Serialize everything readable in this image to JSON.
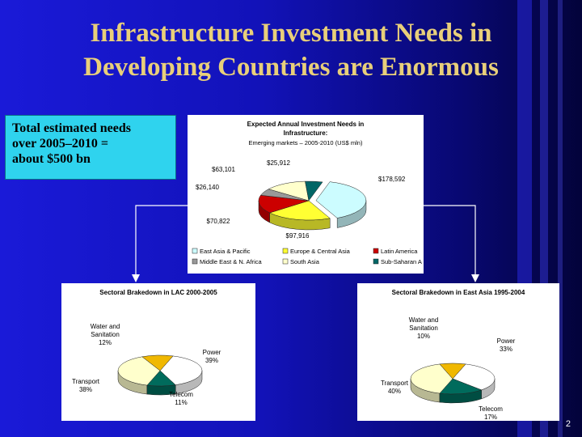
{
  "title_line1": "Infrastructure Investment Needs in",
  "title_line2": "Developing Countries are Enormous",
  "callout_text": {
    "line1": "Total estimated needs",
    "line2": "over 2005–2010 =",
    "line3": "about $500 bn"
  },
  "slide_number": "2",
  "colors": {
    "background": "#1414c8",
    "title": "#e8cf7a",
    "callout": "#2fd3ee",
    "connector": "#ffffff"
  },
  "chart_data": [
    {
      "type": "pie",
      "title_line1": "Expected Annual Investment Needs in",
      "title_line2": "Infrastructure:",
      "subtitle": "Emerging markets – 2005-2010 (US$ mln)",
      "categories": [
        "East Asia & Pacific",
        "Europe & Central Asia",
        "Latin America",
        "Middle East & N. Africa",
        "South Asia",
        "Sub-Saharan Africa"
      ],
      "values": [
        178592,
        97916,
        70822,
        26140,
        63101,
        25912
      ],
      "value_labels": [
        "$178,592",
        "$97,916",
        "$70,822",
        "$26,140",
        "$63,101",
        "$25,912"
      ],
      "legend_labels": [
        "East Asia & Pacific",
        "Europe & Central Asia",
        "Latin America",
        "Middle East & N. Africa",
        "South Asia",
        "Sub-Saharan A"
      ],
      "colors": [
        "#ccfcff",
        "#ffff33",
        "#cc0000",
        "#999999",
        "#ffffcc",
        "#006666"
      ],
      "legend_placement": "bottom"
    },
    {
      "type": "pie",
      "title": "Sectoral Brakedown in LAC 2000-2005",
      "categories": [
        "Power",
        "Telecom",
        "Transport",
        "Water and Sanitation"
      ],
      "values": [
        39,
        11,
        38,
        12
      ],
      "labels": [
        {
          "lines": [
            "Power",
            "39%"
          ]
        },
        {
          "lines": [
            "Telecom",
            "11%"
          ]
        },
        {
          "lines": [
            "Transport",
            "38%"
          ]
        },
        {
          "lines": [
            "Water and",
            "Sanitation",
            "12%"
          ]
        }
      ],
      "colors": [
        "#ffffff",
        "#006b5c",
        "#ffffcc",
        "#f0b800"
      ]
    },
    {
      "type": "pie",
      "title": "Sectoral Brakedown in East Asia 1995-2004",
      "categories": [
        "Power",
        "Telecom",
        "Transport",
        "Water and Sanitation"
      ],
      "values": [
        33,
        17,
        40,
        10
      ],
      "labels": [
        {
          "lines": [
            "Power",
            "33%"
          ]
        },
        {
          "lines": [
            "Telecom",
            "17%"
          ]
        },
        {
          "lines": [
            "Transport",
            "40%"
          ]
        },
        {
          "lines": [
            "Water and",
            "Sanitation",
            "10%"
          ]
        }
      ],
      "colors": [
        "#ffffff",
        "#006b5c",
        "#ffffcc",
        "#f0b800"
      ]
    }
  ]
}
